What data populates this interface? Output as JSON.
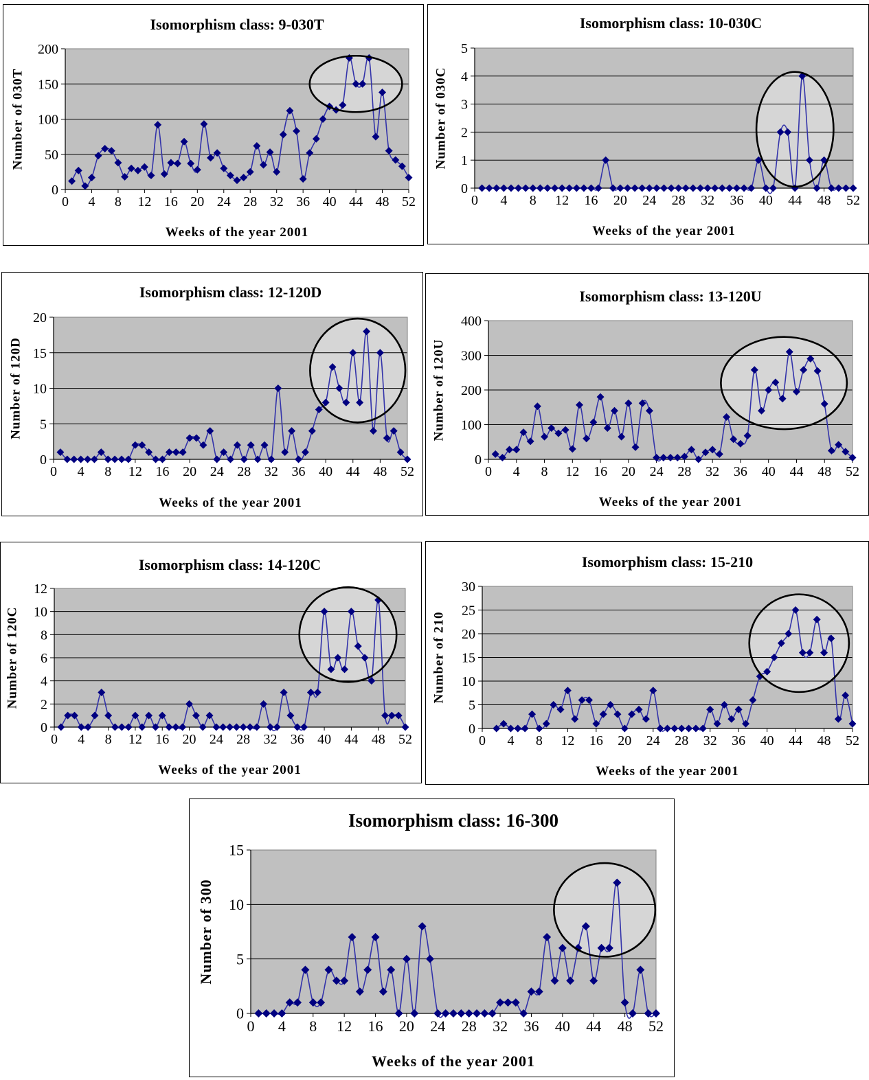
{
  "charts": [
    {
      "type": "line",
      "title": "Isomorphism class: 9-030T",
      "xlabel": "Weeks of the year 2001",
      "ylabel": "Number of 030T",
      "xlim": [
        0,
        52
      ],
      "xticks": [
        "0",
        "4",
        "8",
        "12",
        "16",
        "20",
        "24",
        "28",
        "32",
        "36",
        "40",
        "44",
        "48",
        "52"
      ],
      "ylim": [
        0,
        200
      ],
      "yticks": [
        "0",
        "50",
        "100",
        "150",
        "200"
      ],
      "highlight": {
        "center": [
          44,
          150
        ],
        "radius_x_weeks": 7.0,
        "radius_y_units": 40
      },
      "series": [
        {
          "x": [
            1,
            2,
            3,
            4,
            5,
            6,
            7,
            8,
            9,
            10,
            11,
            12,
            13,
            14,
            15,
            16,
            17,
            18,
            19,
            20,
            21,
            22,
            23,
            24,
            25,
            26,
            27,
            28,
            29,
            30,
            31,
            32,
            33,
            34,
            35,
            36,
            37,
            38,
            39,
            40,
            41,
            42,
            43,
            44,
            45,
            46,
            47,
            48,
            49,
            50,
            51,
            52
          ],
          "values": [
            12,
            27,
            5,
            17,
            48,
            58,
            55,
            38,
            18,
            30,
            27,
            32,
            20,
            92,
            22,
            38,
            37,
            68,
            37,
            28,
            93,
            45,
            52,
            30,
            20,
            13,
            17,
            25,
            62,
            35,
            53,
            25,
            78,
            112,
            83,
            15,
            52,
            72,
            100,
            118,
            113,
            120,
            187,
            150,
            150,
            187,
            75,
            138,
            55,
            42,
            33,
            17
          ]
        }
      ]
    },
    {
      "type": "line",
      "title": "Isomorphism class: 10-030C",
      "xlabel": "Weeks of the year 2001",
      "ylabel": "Number of 030C",
      "xlim": [
        0,
        52
      ],
      "xticks": [
        "0",
        "4",
        "8",
        "12",
        "16",
        "20",
        "24",
        "28",
        "32",
        "36",
        "40",
        "44",
        "48",
        "52"
      ],
      "ylim": [
        0,
        5
      ],
      "yticks": [
        "0",
        "1",
        "2",
        "3",
        "4",
        "5"
      ],
      "highlight": {
        "center": [
          44,
          2.1
        ],
        "radius_x_weeks": 5.3,
        "radius_y_units": 2.05
      },
      "series": [
        {
          "x": [
            1,
            2,
            3,
            4,
            5,
            6,
            7,
            8,
            9,
            10,
            11,
            12,
            13,
            14,
            15,
            16,
            17,
            18,
            19,
            20,
            21,
            22,
            23,
            24,
            25,
            26,
            27,
            28,
            29,
            30,
            31,
            32,
            33,
            34,
            35,
            36,
            37,
            38,
            39,
            40,
            41,
            42,
            43,
            44,
            45,
            46,
            47,
            48,
            49,
            50,
            51,
            52
          ],
          "values": [
            0,
            0,
            0,
            0,
            0,
            0,
            0,
            0,
            0,
            0,
            0,
            0,
            0,
            0,
            0,
            0,
            0,
            1,
            0,
            0,
            0,
            0,
            0,
            0,
            0,
            0,
            0,
            0,
            0,
            0,
            0,
            0,
            0,
            0,
            0,
            0,
            0,
            0,
            1,
            0,
            0,
            2,
            2,
            0,
            4,
            1,
            0,
            1,
            0,
            0,
            0,
            0
          ]
        }
      ]
    },
    {
      "type": "line",
      "title": "Isomorphism class: 12-120D",
      "xlabel": "Weeks of the year 2001",
      "ylabel": "Number of 120D",
      "xlim": [
        0,
        52
      ],
      "xticks": [
        "0",
        "4",
        "8",
        "12",
        "16",
        "20",
        "24",
        "28",
        "32",
        "36",
        "40",
        "44",
        "48",
        "52"
      ],
      "ylim": [
        0,
        20
      ],
      "yticks": [
        "0",
        "5",
        "10",
        "15",
        "20"
      ],
      "highlight": {
        "center": [
          44.7,
          12.5
        ],
        "radius_x_weeks": 7.0,
        "radius_y_units": 7.3
      },
      "series": [
        {
          "x": [
            1,
            2,
            3,
            4,
            5,
            6,
            7,
            8,
            9,
            10,
            11,
            12,
            13,
            14,
            15,
            16,
            17,
            18,
            19,
            20,
            21,
            22,
            23,
            24,
            25,
            26,
            27,
            28,
            29,
            30,
            31,
            32,
            33,
            34,
            35,
            36,
            37,
            38,
            39,
            40,
            41,
            42,
            43,
            44,
            45,
            46,
            47,
            48,
            49,
            50,
            51,
            52
          ],
          "values": [
            1,
            0,
            0,
            0,
            0,
            0,
            1,
            0,
            0,
            0,
            0,
            2,
            2,
            1,
            0,
            0,
            1,
            1,
            1,
            3,
            3,
            2,
            4,
            0,
            1,
            0,
            2,
            0,
            2,
            0,
            2,
            0,
            10,
            1,
            4,
            0,
            1,
            4,
            7,
            8,
            13,
            10,
            8,
            15,
            8,
            18,
            4,
            15,
            3,
            4,
            1,
            0
          ]
        }
      ]
    },
    {
      "type": "line",
      "title": "Isomorphism class: 13-120U",
      "xlabel": "Weeks of the year 2001",
      "ylabel": "Number of 120U",
      "xlim": [
        0,
        52
      ],
      "xticks": [
        "0",
        "4",
        "8",
        "12",
        "16",
        "20",
        "24",
        "28",
        "32",
        "36",
        "40",
        "44",
        "48",
        "52"
      ],
      "ylim": [
        0,
        400
      ],
      "yticks": [
        "0",
        "100",
        "200",
        "300",
        "400"
      ],
      "highlight": {
        "center": [
          42.2,
          220
        ],
        "radius_x_weeks": 9.0,
        "radius_y_units": 133
      },
      "series": [
        {
          "x": [
            1,
            2,
            3,
            4,
            5,
            6,
            7,
            8,
            9,
            10,
            11,
            12,
            13,
            14,
            15,
            16,
            17,
            18,
            19,
            20,
            21,
            22,
            23,
            24,
            25,
            26,
            27,
            28,
            29,
            30,
            31,
            32,
            33,
            34,
            35,
            36,
            37,
            38,
            39,
            40,
            41,
            42,
            43,
            44,
            45,
            46,
            47,
            48,
            49,
            50,
            51,
            52
          ],
          "values": [
            15,
            5,
            28,
            28,
            78,
            52,
            153,
            65,
            90,
            75,
            85,
            30,
            157,
            60,
            107,
            180,
            90,
            140,
            65,
            162,
            35,
            162,
            140,
            5,
            5,
            5,
            5,
            8,
            28,
            0,
            20,
            28,
            15,
            122,
            58,
            45,
            68,
            258,
            140,
            200,
            222,
            175,
            310,
            195,
            258,
            290,
            255,
            160,
            25,
            42,
            22,
            5
          ]
        }
      ]
    },
    {
      "type": "line",
      "title": "Isomorphism class: 14-120C",
      "xlabel": "Weeks of the year 2001",
      "ylabel": "Number of 120C",
      "xlim": [
        0,
        52
      ],
      "xticks": [
        "0",
        "4",
        "8",
        "12",
        "16",
        "20",
        "24",
        "28",
        "32",
        "36",
        "40",
        "44",
        "48",
        "52"
      ],
      "ylim": [
        0,
        12
      ],
      "yticks": [
        "0",
        "2",
        "4",
        "6",
        "8",
        "10",
        "12"
      ],
      "highlight": {
        "center": [
          43.5,
          8
        ],
        "radius_x_weeks": 7.2,
        "radius_y_units": 4.1
      },
      "series": [
        {
          "x": [
            1,
            2,
            3,
            4,
            5,
            6,
            7,
            8,
            9,
            10,
            11,
            12,
            13,
            14,
            15,
            16,
            17,
            18,
            19,
            20,
            21,
            22,
            23,
            24,
            25,
            26,
            27,
            28,
            29,
            30,
            31,
            32,
            33,
            34,
            35,
            36,
            37,
            38,
            39,
            40,
            41,
            42,
            43,
            44,
            45,
            46,
            47,
            48,
            49,
            50,
            51,
            52
          ],
          "values": [
            0,
            1,
            1,
            0,
            0,
            1,
            3,
            1,
            0,
            0,
            0,
            1,
            0,
            1,
            0,
            1,
            0,
            0,
            0,
            2,
            1,
            0,
            1,
            0,
            0,
            0,
            0,
            0,
            0,
            0,
            2,
            0,
            0,
            3,
            1,
            0,
            0,
            3,
            3,
            10,
            5,
            6,
            5,
            10,
            7,
            6,
            4,
            11,
            1,
            1,
            1,
            0
          ]
        }
      ]
    },
    {
      "type": "line",
      "title": "Isomorphism class: 15-210",
      "xlabel": "Weeks of the year 2001",
      "ylabel": "Number of 210",
      "xlim": [
        0,
        52
      ],
      "xticks": [
        "0",
        "4",
        "8",
        "12",
        "16",
        "20",
        "24",
        "28",
        "32",
        "36",
        "40",
        "44",
        "48",
        "52"
      ],
      "ylim": [
        0,
        30
      ],
      "yticks": [
        "0",
        "5",
        "10",
        "15",
        "20",
        "25",
        "30"
      ],
      "highlight": {
        "center": [
          44.5,
          18
        ],
        "radius_x_weeks": 7.0,
        "radius_y_units": 10.3
      },
      "series": [
        {
          "x": [
            2,
            3,
            4,
            5,
            6,
            7,
            8,
            9,
            10,
            11,
            12,
            13,
            14,
            15,
            16,
            17,
            18,
            19,
            20,
            21,
            22,
            23,
            24,
            25,
            26,
            27,
            28,
            29,
            30,
            31,
            32,
            33,
            34,
            35,
            36,
            37,
            38,
            39,
            40,
            41,
            42,
            43,
            44,
            45,
            46,
            47,
            48,
            49,
            50,
            51,
            52
          ],
          "values": [
            0,
            1,
            0,
            0,
            0,
            3,
            0,
            1,
            5,
            4,
            8,
            2,
            6,
            6,
            1,
            3,
            5,
            3,
            0,
            3,
            4,
            2,
            8,
            0,
            0,
            0,
            0,
            0,
            0,
            0,
            4,
            1,
            5,
            2,
            4,
            1,
            6,
            11,
            12,
            15,
            18,
            20,
            25,
            16,
            16,
            23,
            16,
            19,
            2,
            7,
            1
          ]
        }
      ]
    },
    {
      "type": "line",
      "title": "Isomorphism class: 16-300",
      "xlabel": "Weeks of the year 2001",
      "ylabel": "Number of 300",
      "xlim": [
        0,
        52
      ],
      "xticks": [
        "0",
        "4",
        "8",
        "12",
        "16",
        "20",
        "24",
        "28",
        "32",
        "36",
        "40",
        "44",
        "48",
        "52"
      ],
      "ylim": [
        0,
        15
      ],
      "yticks": [
        "0",
        "5",
        "10",
        "15"
      ],
      "highlight": {
        "center": [
          45.4,
          9.5
        ],
        "radius_x_weeks": 6.5,
        "radius_y_units": 4.3
      },
      "series": [
        {
          "x": [
            1,
            2,
            3,
            4,
            5,
            6,
            7,
            8,
            9,
            10,
            11,
            12,
            13,
            14,
            15,
            16,
            17,
            18,
            19,
            20,
            21,
            22,
            23,
            24,
            25,
            26,
            27,
            28,
            29,
            30,
            31,
            32,
            33,
            34,
            35,
            36,
            37,
            38,
            39,
            40,
            41,
            42,
            43,
            44,
            45,
            46,
            47,
            48,
            49,
            50,
            51,
            52
          ],
          "values": [
            0,
            0,
            0,
            0,
            1,
            1,
            4,
            1,
            1,
            4,
            3,
            3,
            7,
            2,
            4,
            7,
            2,
            4,
            0,
            5,
            0,
            8,
            5,
            0,
            0,
            0,
            0,
            0,
            0,
            0,
            0,
            1,
            1,
            1,
            0,
            2,
            2,
            7,
            3,
            6,
            3,
            6,
            8,
            3,
            6,
            6,
            12,
            1,
            0,
            4,
            0,
            0
          ]
        }
      ]
    }
  ],
  "colors": {
    "plot_bg": "#c0c0c0",
    "highlight_bg": "#d6d6d6",
    "line": "#3333aa",
    "marker": "#000080",
    "grid": "#000000"
  }
}
